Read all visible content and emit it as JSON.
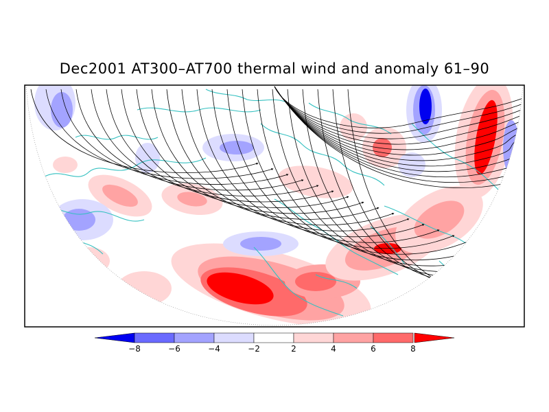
{
  "title": "Dec2001 AT300–AT700 thermal wind and anomaly 61–90",
  "colorbar": {
    "labels": [
      "−8",
      "−6",
      "−4",
      "−2",
      "2",
      "4",
      "6",
      "8"
    ],
    "colors": [
      "#0000f0",
      "#6a6aff",
      "#a3a3ff",
      "#dcdcff",
      "#ffffff",
      "#ffd6d6",
      "#ffa3a3",
      "#ff6a6a",
      "#ff0000"
    ]
  },
  "colors": {
    "coastline": "#33c0c0",
    "streamline": "#000000",
    "frame": "#000000",
    "strong_positive": "#ff0000",
    "strong_negative": "#0000f0"
  }
}
